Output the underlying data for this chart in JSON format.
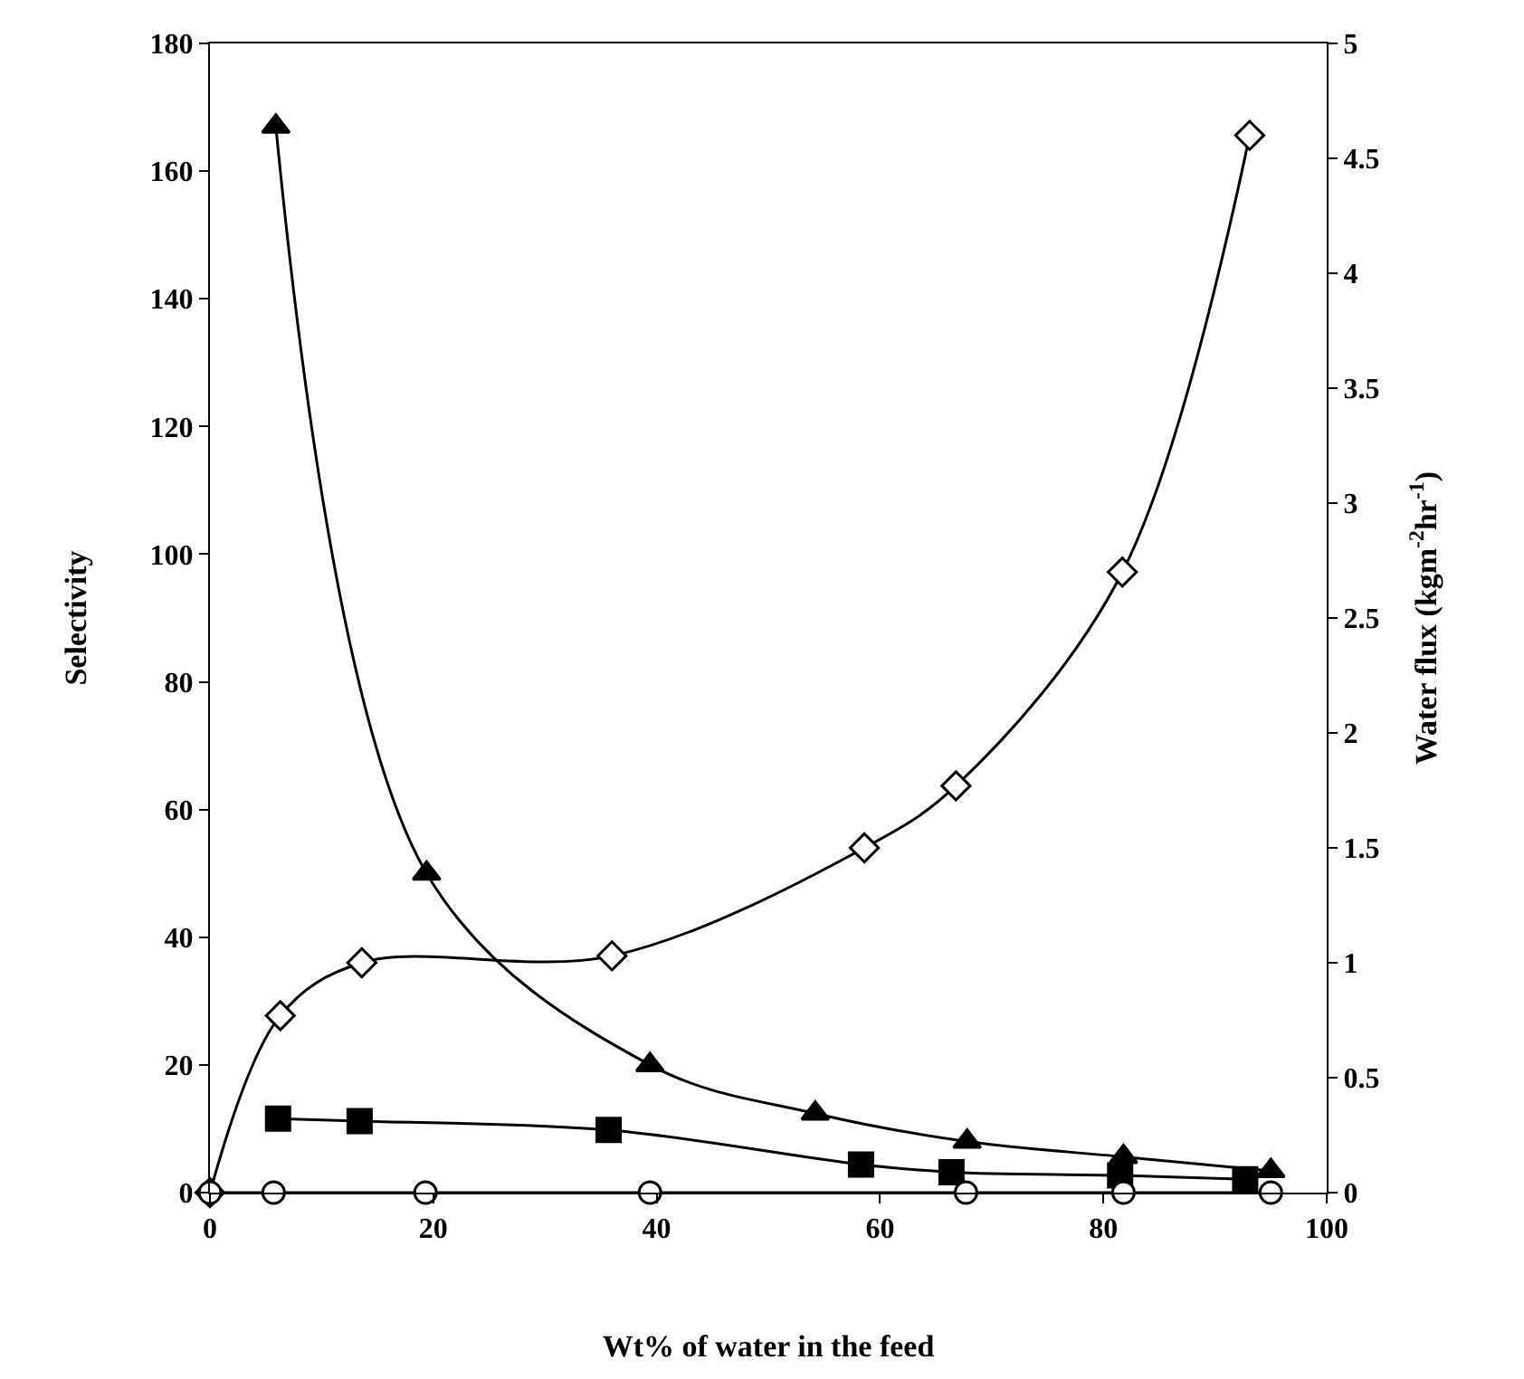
{
  "chart_data": {
    "type": "line",
    "xlabel": "Wt% of water in the feed",
    "ylabel": "Selectivity",
    "y2label": "Water flux (kgm$^{-2}$hr$^{-1}$)",
    "xlim": [
      0,
      100
    ],
    "xticks": [
      0,
      20,
      40,
      60,
      80,
      100
    ],
    "ylim": [
      0,
      180
    ],
    "yticks": [
      0,
      20,
      40,
      60,
      80,
      100,
      120,
      140,
      160,
      180
    ],
    "y2lim": [
      0,
      5
    ],
    "y2ticks": [
      0,
      0.5,
      1,
      1.5,
      2,
      2.5,
      3,
      3.5,
      4,
      4.5,
      5
    ],
    "grid": false,
    "series": [
      {
        "color": "#000000",
        "marker": "triangle",
        "x": [
          5.9,
          19.4,
          39.4,
          54.2,
          67.8,
          81.8,
          95
        ],
        "values": [
          167,
          50,
          20,
          12.4,
          8,
          5.6,
          3.4
        ]
      },
      {
        "color": "#000000",
        "marker": "square",
        "x": [
          6.1,
          13.4,
          35.7,
          58.3,
          66.4,
          81.5,
          92.7
        ],
        "values": [
          11.6,
          11.2,
          9.8,
          4.4,
          3.2,
          2.7,
          2.1
        ]
      },
      {
        "color": "#000000",
        "marker": "diamond",
        "axis": "y2",
        "x": [
          0,
          6.3,
          13.6,
          36,
          58.6,
          66.8,
          81.7,
          93.1
        ],
        "values": [
          0,
          0.77,
          1,
          1.03,
          1.5,
          1.77,
          2.7,
          4.6
        ]
      },
      {
        "color": "#000000",
        "marker": "circle",
        "axis": "y2",
        "x": [
          0,
          5.7,
          19.3,
          39.4,
          67.7,
          81.8,
          95
        ],
        "values": [
          0,
          0,
          0,
          0,
          0,
          0,
          0
        ]
      }
    ]
  }
}
